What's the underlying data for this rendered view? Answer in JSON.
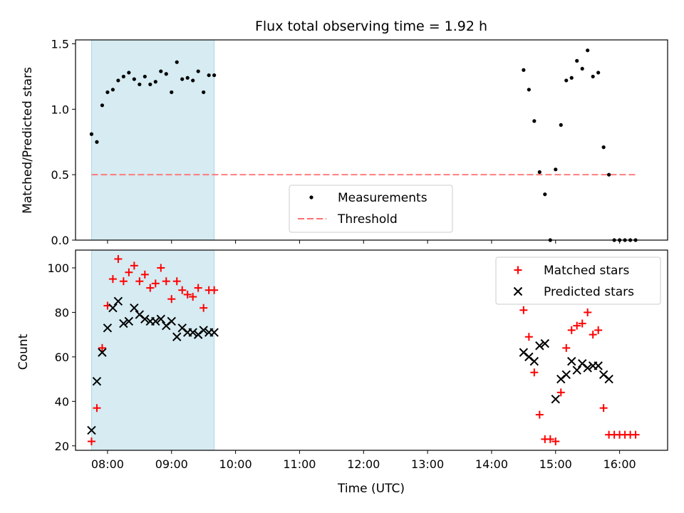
{
  "chart_data": [
    {
      "type": "scatter",
      "title": "Flux total observing time = 1.92 h",
      "ylabel": "Matched/Predicted stars",
      "xlim": [
        "07:30",
        "16:45"
      ],
      "ylim": [
        0,
        1.53
      ],
      "yticks": [
        0.0,
        0.5,
        1.0,
        1.5
      ],
      "ytick_labels": [
        "0.0",
        "0.5",
        "1.0",
        "1.5"
      ],
      "shaded_range": [
        "07:45",
        "09:40"
      ],
      "shaded_color": "#add8e6",
      "legend_position": "lower-center",
      "series": [
        {
          "name": "Measurements",
          "marker": "dot",
          "color": "#000000",
          "points": [
            [
              "07:45",
              0.81
            ],
            [
              "07:50",
              0.75
            ],
            [
              "07:55",
              1.03
            ],
            [
              "08:00",
              1.13
            ],
            [
              "08:05",
              1.15
            ],
            [
              "08:10",
              1.22
            ],
            [
              "08:15",
              1.25
            ],
            [
              "08:20",
              1.28
            ],
            [
              "08:25",
              1.23
            ],
            [
              "08:30",
              1.19
            ],
            [
              "08:35",
              1.25
            ],
            [
              "08:40",
              1.19
            ],
            [
              "08:45",
              1.21
            ],
            [
              "08:50",
              1.29
            ],
            [
              "08:55",
              1.27
            ],
            [
              "09:00",
              1.13
            ],
            [
              "09:05",
              1.36
            ],
            [
              "09:10",
              1.23
            ],
            [
              "09:15",
              1.24
            ],
            [
              "09:20",
              1.22
            ],
            [
              "09:25",
              1.29
            ],
            [
              "09:30",
              1.13
            ],
            [
              "09:35",
              1.26
            ],
            [
              "09:40",
              1.26
            ],
            [
              "14:30",
              1.3
            ],
            [
              "14:35",
              1.15
            ],
            [
              "14:40",
              0.91
            ],
            [
              "14:45",
              0.52
            ],
            [
              "14:50",
              0.35
            ],
            [
              "14:55",
              0.0
            ],
            [
              "15:00",
              0.54
            ],
            [
              "15:05",
              0.88
            ],
            [
              "15:10",
              1.22
            ],
            [
              "15:15",
              1.24
            ],
            [
              "15:20",
              1.37
            ],
            [
              "15:25",
              1.31
            ],
            [
              "15:30",
              1.45
            ],
            [
              "15:35",
              1.25
            ],
            [
              "15:40",
              1.28
            ],
            [
              "15:45",
              0.71
            ],
            [
              "15:50",
              0.5
            ],
            [
              "15:55",
              0.0
            ],
            [
              "16:00",
              0.0
            ],
            [
              "16:05",
              0.0
            ],
            [
              "16:10",
              0.0
            ],
            [
              "16:15",
              0.0
            ]
          ]
        },
        {
          "name": "Threshold",
          "style": "dashed-line",
          "color": "#ff7070",
          "points": [
            [
              "07:45",
              0.5
            ],
            [
              "16:15",
              0.5
            ]
          ]
        }
      ]
    },
    {
      "type": "scatter",
      "xlabel": "Time (UTC)",
      "ylabel": "Count",
      "xlim": [
        "07:30",
        "16:45"
      ],
      "ylim": [
        18,
        108
      ],
      "xticks": [
        "08:00",
        "09:00",
        "10:00",
        "11:00",
        "12:00",
        "13:00",
        "14:00",
        "15:00",
        "16:00"
      ],
      "yticks": [
        20,
        40,
        60,
        80,
        100
      ],
      "ytick_labels": [
        "20",
        "40",
        "60",
        "80",
        "100"
      ],
      "shaded_range": [
        "07:45",
        "09:40"
      ],
      "shaded_color": "#add8e6",
      "legend_position": "top-right",
      "series": [
        {
          "name": "Matched stars",
          "marker": "plus",
          "color": "#ff0000",
          "points": [
            [
              "07:45",
              22
            ],
            [
              "07:50",
              37
            ],
            [
              "07:55",
              64
            ],
            [
              "08:00",
              83
            ],
            [
              "08:05",
              95
            ],
            [
              "08:10",
              104
            ],
            [
              "08:15",
              94
            ],
            [
              "08:20",
              98
            ],
            [
              "08:25",
              101
            ],
            [
              "08:30",
              94
            ],
            [
              "08:35",
              97
            ],
            [
              "08:40",
              91
            ],
            [
              "08:45",
              93
            ],
            [
              "08:50",
              100
            ],
            [
              "08:55",
              94
            ],
            [
              "09:00",
              86
            ],
            [
              "09:05",
              94
            ],
            [
              "09:10",
              90
            ],
            [
              "09:15",
              88
            ],
            [
              "09:20",
              87
            ],
            [
              "09:25",
              91
            ],
            [
              "09:30",
              82
            ],
            [
              "09:35",
              90
            ],
            [
              "09:40",
              90
            ],
            [
              "14:30",
              81
            ],
            [
              "14:35",
              69
            ],
            [
              "14:40",
              53
            ],
            [
              "14:45",
              34
            ],
            [
              "14:50",
              23
            ],
            [
              "14:55",
              23
            ],
            [
              "15:00",
              22
            ],
            [
              "15:05",
              44
            ],
            [
              "15:10",
              64
            ],
            [
              "15:15",
              72
            ],
            [
              "15:20",
              74
            ],
            [
              "15:25",
              75
            ],
            [
              "15:30",
              80
            ],
            [
              "15:35",
              70
            ],
            [
              "15:40",
              72
            ],
            [
              "15:45",
              37
            ],
            [
              "15:50",
              25
            ],
            [
              "15:55",
              25
            ],
            [
              "16:00",
              25
            ],
            [
              "16:05",
              25
            ],
            [
              "16:10",
              25
            ],
            [
              "16:15",
              25
            ]
          ]
        },
        {
          "name": "Predicted stars",
          "marker": "x",
          "color": "#000000",
          "points": [
            [
              "07:45",
              27
            ],
            [
              "07:50",
              49
            ],
            [
              "07:55",
              62
            ],
            [
              "08:00",
              73
            ],
            [
              "08:05",
              82
            ],
            [
              "08:10",
              85
            ],
            [
              "08:15",
              75
            ],
            [
              "08:20",
              76
            ],
            [
              "08:25",
              82
            ],
            [
              "08:30",
              79
            ],
            [
              "08:35",
              77
            ],
            [
              "08:40",
              76
            ],
            [
              "08:45",
              76
            ],
            [
              "08:50",
              77
            ],
            [
              "08:55",
              74
            ],
            [
              "09:00",
              76
            ],
            [
              "09:05",
              69
            ],
            [
              "09:10",
              73
            ],
            [
              "09:15",
              71
            ],
            [
              "09:20",
              71
            ],
            [
              "09:25",
              70
            ],
            [
              "09:30",
              72
            ],
            [
              "09:35",
              71
            ],
            [
              "09:40",
              71
            ],
            [
              "14:30",
              62
            ],
            [
              "14:35",
              60
            ],
            [
              "14:40",
              58
            ],
            [
              "14:45",
              65
            ],
            [
              "14:50",
              66
            ],
            [
              "15:00",
              41
            ],
            [
              "15:05",
              50
            ],
            [
              "15:10",
              52
            ],
            [
              "15:15",
              58
            ],
            [
              "15:20",
              54
            ],
            [
              "15:25",
              57
            ],
            [
              "15:30",
              55
            ],
            [
              "15:35",
              56
            ],
            [
              "15:40",
              56
            ],
            [
              "15:45",
              52
            ],
            [
              "15:50",
              50
            ]
          ]
        }
      ]
    }
  ]
}
